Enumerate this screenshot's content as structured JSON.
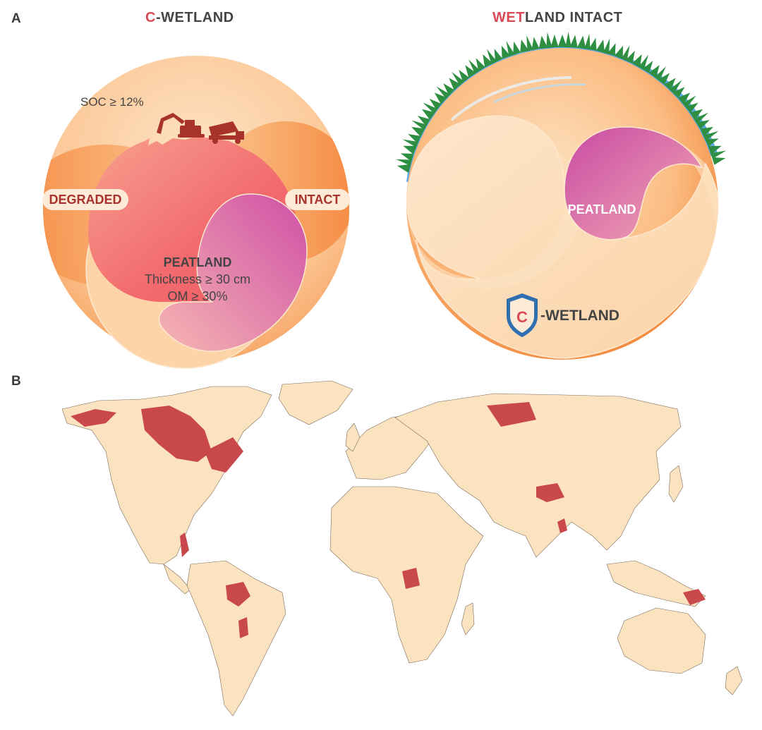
{
  "panel_a": {
    "letter": "A",
    "left": {
      "title_highlight": "C",
      "title_rest": "-WETLAND",
      "soc_label": "SOC ≥ 12%",
      "degraded_label": "DEGRADED",
      "intact_label": "INTACT",
      "peatland_title": "PEATLAND",
      "peatland_line1": "Thickness ≥ 30 cm",
      "peatland_line2": "OM ≥ 30%",
      "icons": [
        "excavator-icon",
        "dump-truck-icon"
      ]
    },
    "right": {
      "title_highlight": "WET",
      "title_rest": "LAND INTACT",
      "peatland_label": "PEATLAND",
      "badge_letter": "C",
      "badge_text": "-WETLAND",
      "icons": [
        "grass-icon",
        "water-icon",
        "shield-icon"
      ]
    }
  },
  "panel_b": {
    "letter": "B",
    "map_land_color": "#fce3c0",
    "map_wetland_color": "#c9484c"
  },
  "colors": {
    "orange_light": "#fcd6ae",
    "orange_dark": "#f58e45",
    "red_peat": "#f0646b",
    "magenta": "#d15aa8",
    "title_red": "#d94a55",
    "shield_blue": "#2e6fb0",
    "grass_green": "#2e9a46",
    "water_blue": "#4a9ee8"
  }
}
